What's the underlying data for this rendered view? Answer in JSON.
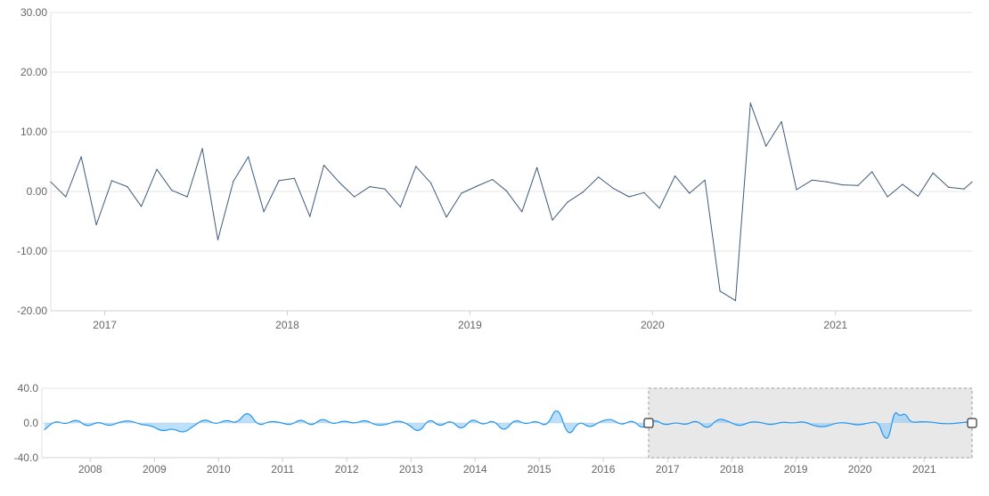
{
  "chart_data": [
    {
      "id": "main",
      "type": "line",
      "x_type": "date",
      "ylim": [
        -20,
        30
      ],
      "xlim": [
        "2016-09-15",
        "2021-10-01"
      ],
      "y_ticks": [
        30,
        20,
        10,
        0,
        -10,
        -20
      ],
      "y_tick_labels": [
        "30.00",
        "20.00",
        "10.00",
        "0.00",
        "-10.00",
        "-20.00"
      ],
      "x_ticks": [
        "2017-01-01",
        "2018-01-01",
        "2019-01-01",
        "2020-01-01",
        "2021-01-01"
      ],
      "x_tick_labels": [
        "2017",
        "2018",
        "2019",
        "2020",
        "2021"
      ],
      "grid": true,
      "line_color": "#3f5a7a",
      "x": [
        "2016-09-15",
        "2016-10-15",
        "2016-11-15",
        "2016-12-15",
        "2017-01-15",
        "2017-02-15",
        "2017-03-15",
        "2017-04-15",
        "2017-05-15",
        "2017-06-15",
        "2017-07-15",
        "2017-08-15",
        "2017-09-15",
        "2017-10-15",
        "2017-11-15",
        "2017-12-15",
        "2018-01-15",
        "2018-02-15",
        "2018-03-15",
        "2018-04-15",
        "2018-05-15",
        "2018-06-15",
        "2018-07-15",
        "2018-08-15",
        "2018-09-15",
        "2018-10-15",
        "2018-11-15",
        "2018-12-15",
        "2019-01-15",
        "2019-02-15",
        "2019-03-15",
        "2019-04-15",
        "2019-05-15",
        "2019-06-15",
        "2019-07-15",
        "2019-08-15",
        "2019-09-15",
        "2019-10-15",
        "2019-11-15",
        "2019-12-15",
        "2020-01-15",
        "2020-02-15",
        "2020-03-15",
        "2020-04-15",
        "2020-05-15",
        "2020-06-15",
        "2020-07-15",
        "2020-08-15",
        "2020-09-15",
        "2020-10-15",
        "2020-11-15",
        "2020-12-15",
        "2021-01-15",
        "2021-02-15",
        "2021-03-15",
        "2021-04-15",
        "2021-05-15",
        "2021-06-15",
        "2021-07-15",
        "2021-08-15",
        "2021-09-15",
        "2021-10-01"
      ],
      "values": [
        1.6,
        -0.9,
        5.8,
        -5.6,
        1.8,
        0.8,
        -2.5,
        3.7,
        0.2,
        -0.9,
        7.2,
        -8.1,
        1.7,
        5.8,
        -3.4,
        1.8,
        2.2,
        -4.2,
        4.4,
        1.5,
        -0.9,
        0.8,
        0.4,
        -2.6,
        4.2,
        1.4,
        -4.3,
        -0.3,
        0.9,
        2.0,
        0.1,
        -3.4,
        4.0,
        -4.8,
        -1.8,
        -0.1,
        2.4,
        0.5,
        -0.9,
        -0.2,
        -2.8,
        2.6,
        -0.3,
        1.9,
        -16.7,
        -18.3,
        14.8,
        7.6,
        11.7,
        0.3,
        1.9,
        1.6,
        1.1,
        1.0,
        3.3,
        -0.9,
        1.2,
        -0.8,
        3.1,
        0.7,
        0.4,
        1.6
      ]
    },
    {
      "id": "navigator",
      "type": "area",
      "x_type": "date",
      "ylim": [
        -40,
        40
      ],
      "xlim": [
        "2007-04-01",
        "2021-10-01"
      ],
      "y_ticks": [
        40,
        0,
        -40
      ],
      "y_tick_labels": [
        "40.0",
        "0.0",
        "-40.0"
      ],
      "x_ticks": [
        "2008-01-01",
        "2009-01-01",
        "2010-01-01",
        "2011-01-01",
        "2012-01-01",
        "2013-01-01",
        "2014-01-01",
        "2015-01-01",
        "2016-01-01",
        "2017-01-01",
        "2018-01-01",
        "2019-01-01",
        "2020-01-01",
        "2021-01-01"
      ],
      "x_tick_labels": [
        "2008",
        "2009",
        "2010",
        "2011",
        "2012",
        "2013",
        "2014",
        "2015",
        "2016",
        "2017",
        "2018",
        "2019",
        "2020",
        "2021"
      ],
      "grid": true,
      "line_color": "#2196f3",
      "fill_color": "#90caf9",
      "selection": [
        "2016-09-15",
        "2021-10-01"
      ],
      "x": [
        "2007-04-15",
        "2007-06-15",
        "2007-08-15",
        "2007-10-15",
        "2007-12-15",
        "2008-02-15",
        "2008-04-15",
        "2008-06-15",
        "2008-08-15",
        "2008-10-15",
        "2008-12-15",
        "2009-02-15",
        "2009-04-15",
        "2009-06-15",
        "2009-08-15",
        "2009-10-15",
        "2009-12-15",
        "2010-02-15",
        "2010-04-15",
        "2010-06-15",
        "2010-08-15",
        "2010-10-15",
        "2010-12-15",
        "2011-02-15",
        "2011-04-15",
        "2011-06-15",
        "2011-08-15",
        "2011-10-15",
        "2011-12-15",
        "2012-02-15",
        "2012-04-15",
        "2012-06-15",
        "2012-08-15",
        "2012-10-15",
        "2012-12-15",
        "2013-02-15",
        "2013-04-15",
        "2013-06-15",
        "2013-08-15",
        "2013-10-15",
        "2013-12-15",
        "2014-02-15",
        "2014-04-15",
        "2014-06-15",
        "2014-08-15",
        "2014-10-15",
        "2014-12-15",
        "2015-02-15",
        "2015-04-15",
        "2015-06-15",
        "2015-08-15",
        "2015-10-15",
        "2015-12-15",
        "2016-02-15",
        "2016-04-15",
        "2016-06-15",
        "2016-08-15",
        "2016-10-15",
        "2016-12-15",
        "2017-02-15",
        "2017-04-15",
        "2017-06-15",
        "2017-08-15",
        "2017-10-15",
        "2017-12-15",
        "2018-02-15",
        "2018-04-15",
        "2018-06-15",
        "2018-08-15",
        "2018-10-15",
        "2018-12-15",
        "2019-02-15",
        "2019-04-15",
        "2019-06-15",
        "2019-08-15",
        "2019-10-15",
        "2019-12-15",
        "2020-02-15",
        "2020-04-15",
        "2020-05-15",
        "2020-06-15",
        "2020-07-15",
        "2020-08-15",
        "2020-09-15",
        "2020-10-15",
        "2020-12-15",
        "2021-02-15",
        "2021-04-15",
        "2021-06-15",
        "2021-08-15",
        "2021-10-01"
      ],
      "values": [
        -8,
        3,
        -2,
        5,
        -5,
        2,
        -4,
        1,
        3,
        -2,
        -3,
        -10,
        -6,
        -12,
        -3,
        5,
        -2,
        4,
        -1,
        15,
        -4,
        2,
        1,
        -3,
        5,
        -4,
        6,
        -2,
        3,
        -1,
        4,
        -3,
        -2,
        3,
        -1,
        -12,
        6,
        -5,
        4,
        -9,
        6,
        -3,
        4,
        -11,
        5,
        -2,
        3,
        -5,
        22,
        -18,
        3,
        -6,
        2,
        5,
        -3,
        4,
        -8,
        5,
        -3,
        0.8,
        -2.5,
        3.7,
        -8.1,
        5.8,
        1.8,
        -4.2,
        1.5,
        0.8,
        -2.6,
        1.4,
        -0.3,
        2.0,
        -3.4,
        -4.8,
        -0.1,
        0.5,
        -2.8,
        -0.3,
        1.9,
        -16.7,
        -18.3,
        14.8,
        7.6,
        11.7,
        0.3,
        1.6,
        1.0,
        -0.9,
        -0.8,
        0.7,
        1.6
      ]
    }
  ]
}
